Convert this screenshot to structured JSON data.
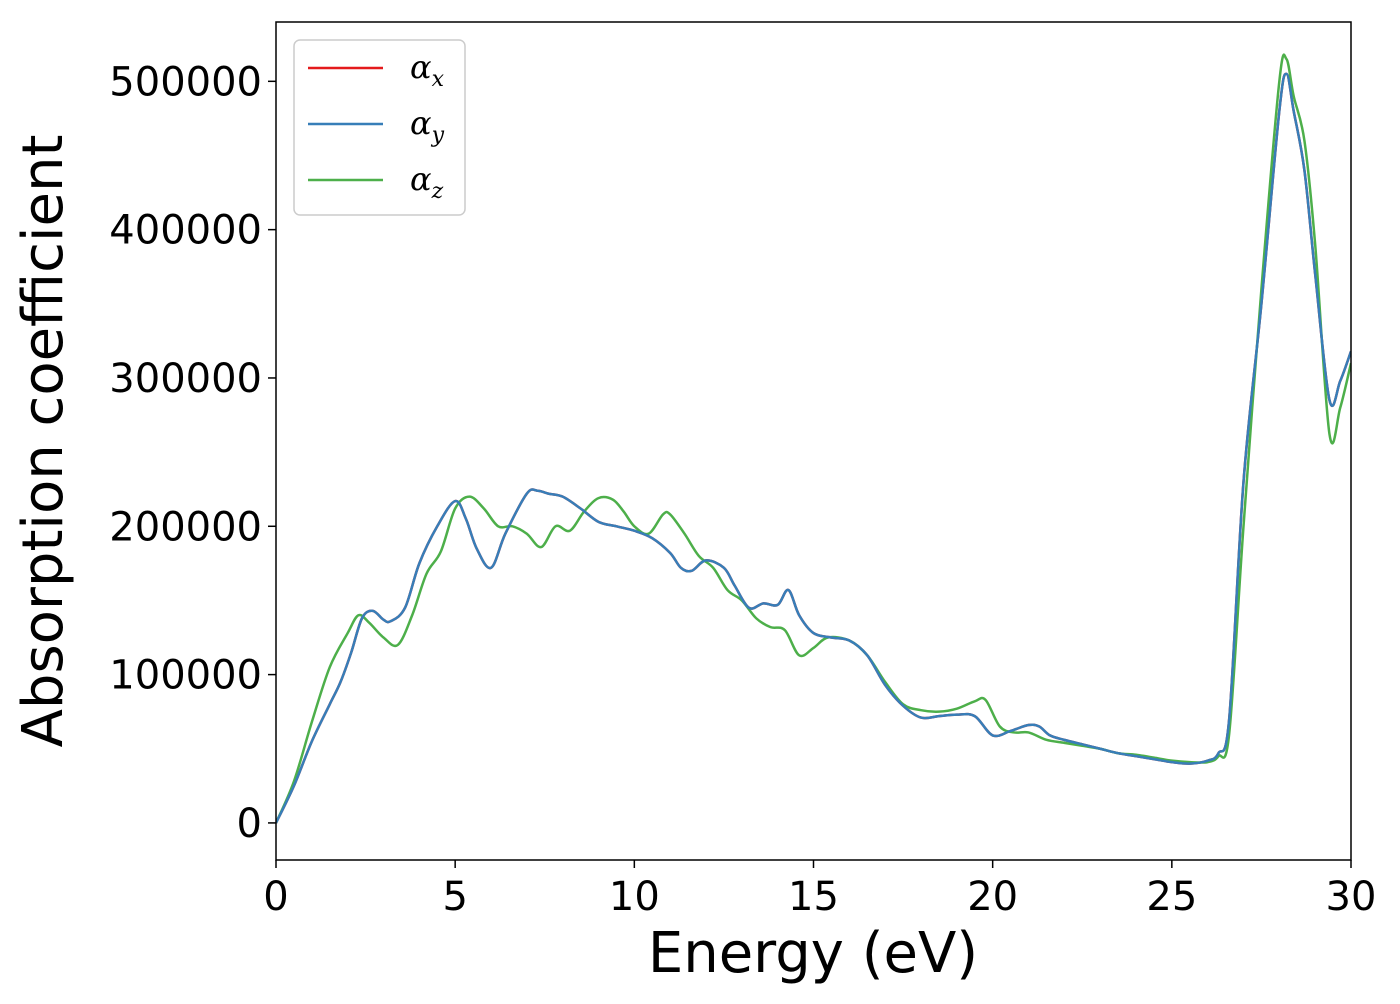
{
  "chart_data": {
    "type": "line",
    "title": "",
    "xlabel": "Energy (eV)",
    "ylabel": "Absorption coefficient",
    "xlim": [
      0,
      30
    ],
    "ylim": [
      -25000,
      540000
    ],
    "xticks": [
      0,
      5,
      10,
      15,
      20,
      25,
      30
    ],
    "yticks": [
      0,
      100000,
      200000,
      300000,
      400000,
      500000
    ],
    "grid": false,
    "legend_position": "top-left",
    "series": [
      {
        "name": "α_x",
        "name_base": "α",
        "name_sub": "x",
        "color": "#e41a1c",
        "x": [
          0,
          0.5,
          1.0,
          1.5,
          1.8,
          2.1,
          2.4,
          2.7,
          3.0,
          3.2,
          3.6,
          4.0,
          4.5,
          5.0,
          5.3,
          5.6,
          6.0,
          6.4,
          7.0,
          7.3,
          7.6,
          8.0,
          8.5,
          9.0,
          9.5,
          10.0,
          10.5,
          11.0,
          11.3,
          11.6,
          12.0,
          12.5,
          12.8,
          13.2,
          13.6,
          14.0,
          14.3,
          14.6,
          15.0,
          15.5,
          16.0,
          16.5,
          17.0,
          17.5,
          18.0,
          18.5,
          19.0,
          19.5,
          20.0,
          20.5,
          21.0,
          21.3,
          21.6,
          22.0,
          22.5,
          23.0,
          23.5,
          24.0,
          24.5,
          25.0,
          25.5,
          26.0,
          26.3,
          26.6,
          27.0,
          27.5,
          28.0,
          28.2,
          28.4,
          28.7,
          29.0,
          29.4,
          29.7,
          30.0
        ],
        "y": [
          0,
          25000,
          55000,
          80000,
          95000,
          115000,
          138000,
          143000,
          137000,
          136000,
          145000,
          175000,
          200000,
          217000,
          205000,
          185000,
          172000,
          195000,
          222000,
          224000,
          222000,
          220000,
          212000,
          203000,
          200000,
          197000,
          192000,
          182000,
          172000,
          170000,
          177000,
          172000,
          160000,
          145000,
          148000,
          147000,
          157000,
          140000,
          128000,
          125000,
          123000,
          113000,
          93000,
          79000,
          71000,
          72000,
          73000,
          72000,
          59000,
          62000,
          66000,
          65000,
          59000,
          56000,
          53000,
          50000,
          47000,
          45000,
          43000,
          41000,
          40000,
          42000,
          47000,
          70000,
          230000,
          350000,
          480000,
          505000,
          480000,
          440000,
          370000,
          285000,
          298000,
          318000
        ]
      },
      {
        "name": "α_y",
        "name_base": "α",
        "name_sub": "y",
        "color": "#377eb8",
        "x": [
          0,
          0.5,
          1.0,
          1.5,
          1.8,
          2.1,
          2.4,
          2.7,
          3.0,
          3.2,
          3.6,
          4.0,
          4.5,
          5.0,
          5.3,
          5.6,
          6.0,
          6.4,
          7.0,
          7.3,
          7.6,
          8.0,
          8.5,
          9.0,
          9.5,
          10.0,
          10.5,
          11.0,
          11.3,
          11.6,
          12.0,
          12.5,
          12.8,
          13.2,
          13.6,
          14.0,
          14.3,
          14.6,
          15.0,
          15.5,
          16.0,
          16.5,
          17.0,
          17.5,
          18.0,
          18.5,
          19.0,
          19.5,
          20.0,
          20.5,
          21.0,
          21.3,
          21.6,
          22.0,
          22.5,
          23.0,
          23.5,
          24.0,
          24.5,
          25.0,
          25.5,
          26.0,
          26.3,
          26.6,
          27.0,
          27.5,
          28.0,
          28.2,
          28.4,
          28.7,
          29.0,
          29.4,
          29.7,
          30.0
        ],
        "y": [
          0,
          25000,
          55000,
          80000,
          95000,
          115000,
          138000,
          143000,
          137000,
          136000,
          145000,
          175000,
          200000,
          217000,
          205000,
          185000,
          172000,
          195000,
          222000,
          224000,
          222000,
          220000,
          212000,
          203000,
          200000,
          197000,
          192000,
          182000,
          172000,
          170000,
          177000,
          172000,
          160000,
          145000,
          148000,
          147000,
          157000,
          140000,
          128000,
          125000,
          123000,
          113000,
          93000,
          79000,
          71000,
          72000,
          73000,
          72000,
          59000,
          62000,
          66000,
          65000,
          59000,
          56000,
          53000,
          50000,
          47000,
          45000,
          43000,
          41000,
          40000,
          42000,
          47000,
          70000,
          230000,
          350000,
          480000,
          505000,
          480000,
          440000,
          370000,
          285000,
          298000,
          318000
        ]
      },
      {
        "name": "α_z",
        "name_base": "α",
        "name_sub": "z",
        "color": "#4daf4a",
        "x": [
          0,
          0.5,
          1.0,
          1.5,
          2.0,
          2.3,
          2.6,
          3.0,
          3.4,
          3.8,
          4.2,
          4.6,
          5.0,
          5.4,
          5.8,
          6.2,
          6.6,
          7.0,
          7.4,
          7.8,
          8.2,
          8.6,
          9.0,
          9.4,
          9.7,
          10.0,
          10.4,
          10.8,
          11.0,
          11.4,
          11.8,
          12.2,
          12.6,
          13.0,
          13.4,
          13.8,
          14.2,
          14.6,
          15.0,
          15.4,
          16.0,
          16.5,
          17.0,
          17.5,
          18.0,
          18.5,
          19.0,
          19.5,
          19.8,
          20.2,
          20.6,
          21.0,
          21.5,
          22.0,
          22.5,
          23.0,
          23.5,
          24.0,
          24.5,
          25.0,
          25.5,
          26.0,
          26.3,
          26.6,
          27.0,
          27.5,
          28.0,
          28.2,
          28.4,
          28.7,
          29.0,
          29.4,
          29.7,
          30.0
        ],
        "y": [
          0,
          28000,
          68000,
          105000,
          128000,
          140000,
          135000,
          125000,
          120000,
          140000,
          168000,
          183000,
          212000,
          220000,
          212000,
          200000,
          200000,
          195000,
          186000,
          200000,
          197000,
          210000,
          219000,
          218000,
          210000,
          200000,
          195000,
          208000,
          208000,
          195000,
          180000,
          172000,
          157000,
          150000,
          138000,
          132000,
          130000,
          113000,
          118000,
          125000,
          123000,
          113000,
          95000,
          80000,
          76000,
          75000,
          77000,
          82000,
          83000,
          65000,
          61000,
          61000,
          56000,
          54000,
          52000,
          50000,
          47000,
          46000,
          44000,
          42000,
          41000,
          41000,
          45000,
          60000,
          200000,
          360000,
          500000,
          515000,
          490000,
          460000,
          390000,
          262000,
          280000,
          310000
        ]
      }
    ]
  }
}
